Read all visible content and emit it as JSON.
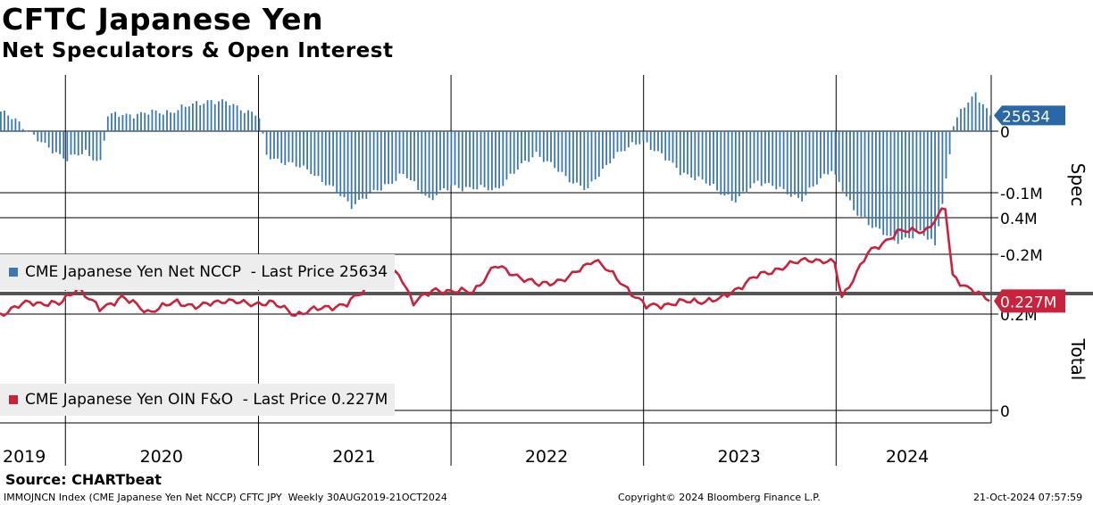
{
  "header": {
    "title": "CFTC Japanese Yen",
    "subtitle": "Net Speculators & Open Interest"
  },
  "footer": {
    "source": "Source: CHARTbeat",
    "index_info": "IMMOJNCN Index (CME Japanese Yen Net NCCP) CFTC JPY  Weekly 30AUG2019-21OCT2024",
    "copyright": "Copyright© 2024 Bloomberg Finance L.P.",
    "timestamp": "21-Oct-2024 07:57:59"
  },
  "colors": {
    "spec_bars": "#3a78ad",
    "open_interest_line": "#c8223c",
    "last_spec_tag": "#2a67a7",
    "last_oi_tag": "#c8223c",
    "legend_bg": "#ededed"
  },
  "chart_data": [
    {
      "type": "bar",
      "panel": "top",
      "side_label": "Spec",
      "legend": "CME Japanese Yen Net NCCP  - Last Price 25634",
      "last_value_label": "25634",
      "yticks": [
        "0",
        "-0.1M",
        "-0.2M"
      ],
      "ylim": [
        -240000,
        90000
      ],
      "date_start": "2019-08-30",
      "date_end": "2024-10-21",
      "series": [
        {
          "name": "CME Japanese Yen Net NCCP",
          "keyframes": [
            [
              "2019-08-30",
              30000
            ],
            [
              "2019-09-27",
              20000
            ],
            [
              "2019-11-15",
              -20000
            ],
            [
              "2020-01-03",
              -45000
            ],
            [
              "2020-02-07",
              -35000
            ],
            [
              "2020-03-06",
              -50000
            ],
            [
              "2020-03-20",
              25000
            ],
            [
              "2020-05-15",
              28000
            ],
            [
              "2020-07-17",
              32000
            ],
            [
              "2020-09-25",
              50000
            ],
            [
              "2020-11-06",
              45000
            ],
            [
              "2020-12-31",
              25000
            ],
            [
              "2021-01-15",
              -40000
            ],
            [
              "2021-04-09",
              -65000
            ],
            [
              "2021-05-14",
              -90000
            ],
            [
              "2021-06-25",
              -120000
            ],
            [
              "2021-08-06",
              -100000
            ],
            [
              "2021-10-01",
              -70000
            ],
            [
              "2021-11-19",
              -110000
            ],
            [
              "2021-12-31",
              -90000
            ],
            [
              "2022-03-25",
              -95000
            ],
            [
              "2022-06-10",
              -35000
            ],
            [
              "2022-08-05",
              -75000
            ],
            [
              "2022-09-16",
              -95000
            ],
            [
              "2022-11-04",
              -40000
            ],
            [
              "2022-12-30",
              -15000
            ],
            [
              "2023-03-10",
              -65000
            ],
            [
              "2023-05-12",
              -90000
            ],
            [
              "2023-06-23",
              -115000
            ],
            [
              "2023-08-04",
              -80000
            ],
            [
              "2023-10-27",
              -110000
            ],
            [
              "2023-12-22",
              -60000
            ],
            [
              "2024-02-02",
              -130000
            ],
            [
              "2024-04-19",
              -180000
            ],
            [
              "2024-06-07",
              -165000
            ],
            [
              "2024-07-05",
              -185000
            ],
            [
              "2024-07-26",
              -80000
            ],
            [
              "2024-08-09",
              10000
            ],
            [
              "2024-08-30",
              40000
            ],
            [
              "2024-09-20",
              62000
            ],
            [
              "2024-10-04",
              45000
            ],
            [
              "2024-10-18",
              25634
            ]
          ]
        }
      ]
    },
    {
      "type": "line",
      "panel": "bottom",
      "side_label": "Total",
      "legend": "CME Japanese Yen OIN F&O  - Last Price 0.227M",
      "last_value_label": "0.227M",
      "yticks": [
        "0.4M",
        "0.2M",
        "0"
      ],
      "ylim": [
        -15000,
        450000
      ],
      "date_start": "2019-08-30",
      "date_end": "2024-10-21",
      "series": [
        {
          "name": "CME Japanese Yen OIN F&O",
          "keyframes": [
            [
              "2019-08-30",
              200000
            ],
            [
              "2019-10-25",
              225000
            ],
            [
              "2019-12-20",
              220000
            ],
            [
              "2020-01-24",
              255000
            ],
            [
              "2020-03-06",
              210000
            ],
            [
              "2020-04-17",
              235000
            ],
            [
              "2020-06-05",
              205000
            ],
            [
              "2020-07-31",
              225000
            ],
            [
              "2020-09-11",
              215000
            ],
            [
              "2020-10-30",
              230000
            ],
            [
              "2020-12-11",
              220000
            ],
            [
              "2021-01-22",
              225000
            ],
            [
              "2021-03-12",
              200000
            ],
            [
              "2021-05-14",
              215000
            ],
            [
              "2021-06-18",
              220000
            ],
            [
              "2021-08-06",
              265000
            ],
            [
              "2021-09-24",
              285000
            ],
            [
              "2021-10-22",
              225000
            ],
            [
              "2021-12-03",
              250000
            ],
            [
              "2022-02-11",
              245000
            ],
            [
              "2022-03-25",
              300000
            ],
            [
              "2022-06-17",
              260000
            ],
            [
              "2022-08-12",
              275000
            ],
            [
              "2022-09-30",
              315000
            ],
            [
              "2022-11-25",
              260000
            ],
            [
              "2023-01-06",
              215000
            ],
            [
              "2023-03-17",
              225000
            ],
            [
              "2023-05-26",
              230000
            ],
            [
              "2023-07-28",
              275000
            ],
            [
              "2023-09-15",
              295000
            ],
            [
              "2023-11-10",
              315000
            ],
            [
              "2023-12-29",
              305000
            ],
            [
              "2024-01-12",
              235000
            ],
            [
              "2024-03-01",
              325000
            ],
            [
              "2024-04-26",
              370000
            ],
            [
              "2024-06-21",
              375000
            ],
            [
              "2024-07-26",
              420000
            ],
            [
              "2024-08-09",
              280000
            ],
            [
              "2024-09-06",
              255000
            ],
            [
              "2024-10-18",
              227000
            ]
          ]
        }
      ]
    },
    {
      "type": "axis",
      "x_tick_labels": [
        "2019",
        "2020",
        "2021",
        "2022",
        "2023",
        "2024"
      ],
      "x_tick_dates": [
        "2019-10-15",
        "2020-07-01",
        "2021-07-01",
        "2022-07-01",
        "2023-07-01",
        "2024-05-15"
      ],
      "year_boundaries": [
        "2020-01-01",
        "2021-01-01",
        "2022-01-01",
        "2023-01-01",
        "2024-01-01"
      ]
    }
  ]
}
